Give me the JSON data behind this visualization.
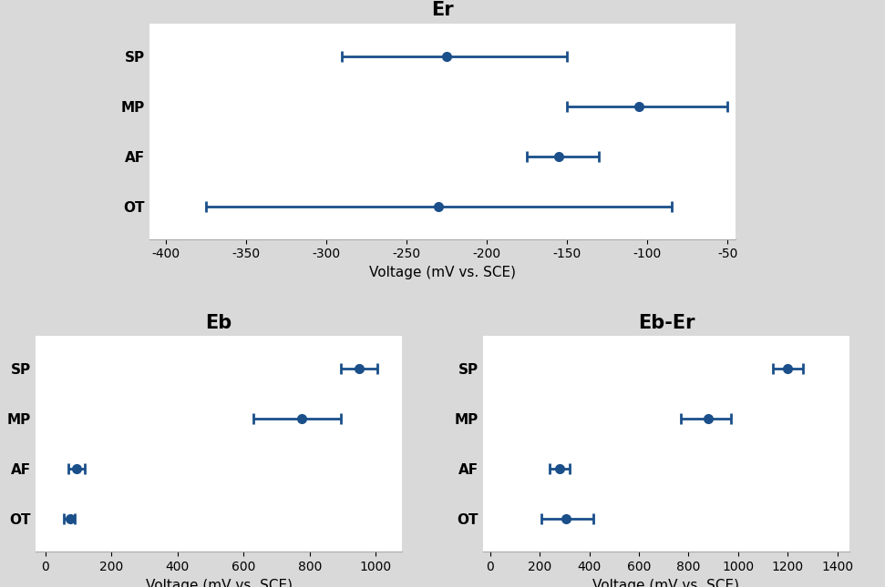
{
  "Er": {
    "title": "Er",
    "categories": [
      "SP",
      "MP",
      "AF",
      "OT"
    ],
    "centers": [
      -225,
      -105,
      -155,
      -230
    ],
    "xerr_low": [
      65,
      45,
      20,
      145
    ],
    "xerr_high": [
      75,
      55,
      25,
      145
    ],
    "xlim": [
      -410,
      -45
    ],
    "xticks": [
      -400,
      -350,
      -300,
      -250,
      -200,
      -150,
      -100,
      -50
    ],
    "xlabel": "Voltage (mV vs. SCE)"
  },
  "Eb": {
    "title": "Eb",
    "categories": [
      "SP",
      "MP",
      "AF",
      "OT"
    ],
    "centers": [
      950,
      775,
      95,
      75
    ],
    "xerr_low": [
      55,
      145,
      25,
      20
    ],
    "xerr_high": [
      55,
      120,
      25,
      15
    ],
    "xlim": [
      -30,
      1080
    ],
    "xticks": [
      0,
      200,
      400,
      600,
      800,
      1000
    ],
    "xlabel": "Voltage (mV vs. SCE)"
  },
  "Eb_Er": {
    "title": "Eb-Er",
    "categories": [
      "SP",
      "MP",
      "AF",
      "OT"
    ],
    "centers": [
      1200,
      880,
      280,
      305
    ],
    "xerr_low": [
      60,
      110,
      40,
      100
    ],
    "xerr_high": [
      60,
      90,
      40,
      110
    ],
    "xlim": [
      -30,
      1450
    ],
    "xticks": [
      0,
      200,
      400,
      600,
      800,
      1000,
      1200,
      1400
    ],
    "xlabel": "Voltage (mV vs. SCE)"
  },
  "dot_color": "#1a4f8a",
  "line_color": "#1a4f8a",
  "bg_outer": "#d9d9d9",
  "bg_inner": "#ffffff",
  "title_fontsize": 15,
  "label_fontsize": 11,
  "tick_fontsize": 10,
  "linewidth": 2.0,
  "capsize": 4,
  "markersize": 7
}
